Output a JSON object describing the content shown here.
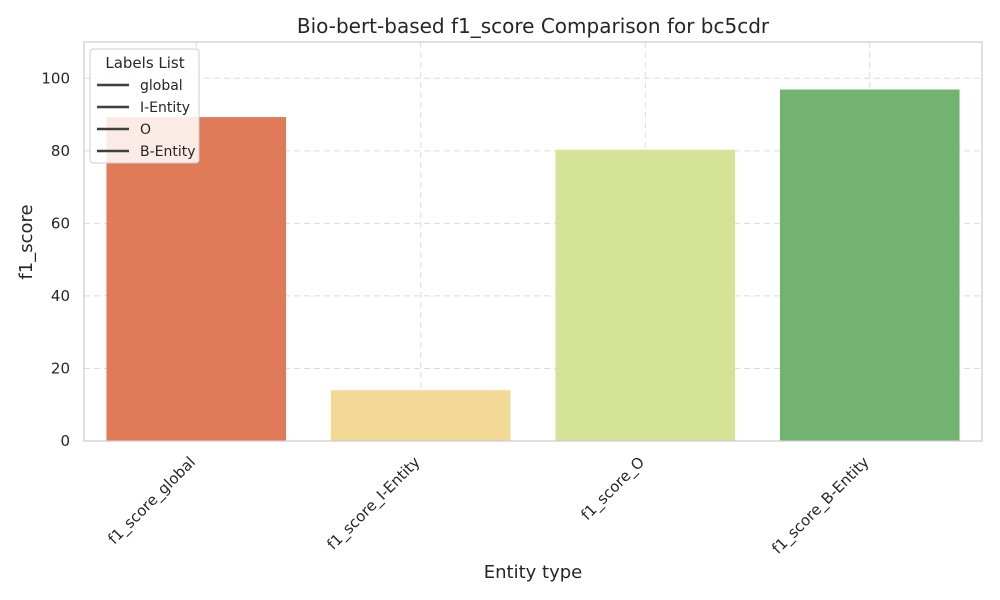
{
  "chart_data": {
    "type": "bar",
    "title": "Bio-bert-based f1_score Comparison for bc5cdr",
    "xlabel": "Entity type",
    "ylabel": "f1_score",
    "categories": [
      "f1_score_global",
      "f1_score_I-Entity",
      "f1_score_O",
      "f1_score_B-Entity"
    ],
    "values": [
      89.3,
      14.0,
      80.3,
      96.9
    ],
    "colors": [
      "#e07b5a",
      "#f2d995",
      "#d4e395",
      "#72b370"
    ],
    "ylim": [
      0,
      110
    ],
    "yticks": [
      0,
      20,
      40,
      60,
      80,
      100
    ],
    "grid": true,
    "legend": {
      "title": "Labels List",
      "placement": "top-left",
      "entries": [
        "global",
        "I-Entity",
        "O",
        "B-Entity"
      ]
    }
  }
}
